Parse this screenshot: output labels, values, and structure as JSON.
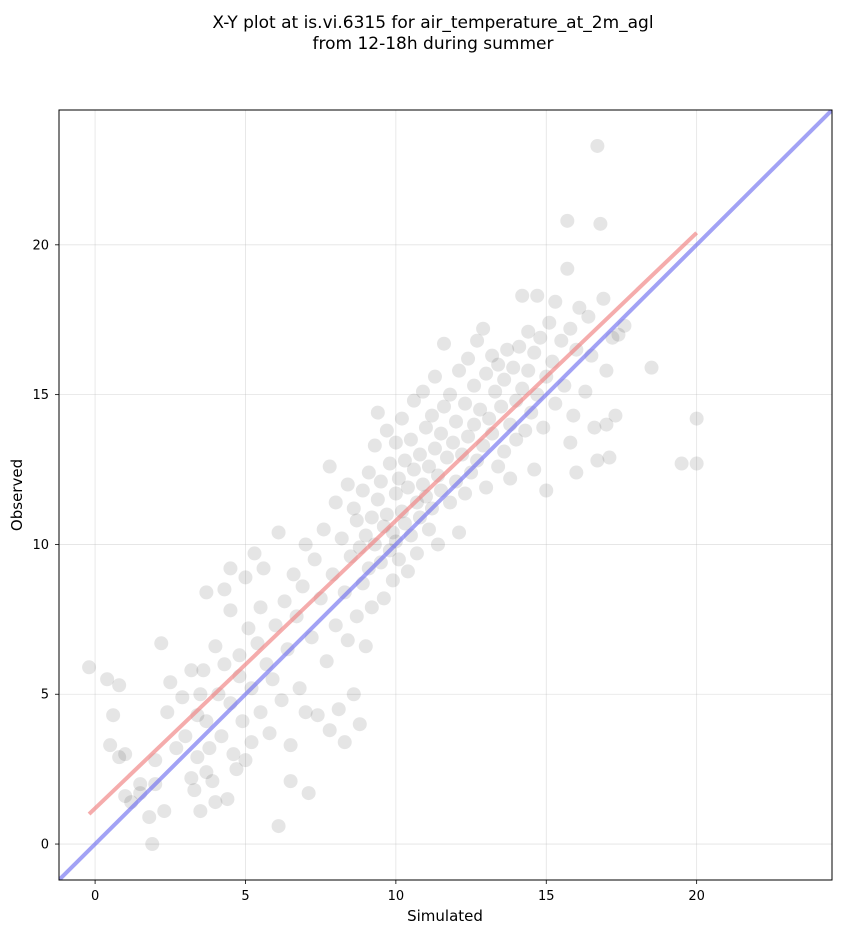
{
  "chart_data": {
    "type": "scatter",
    "title": [
      "X-Y plot at is.vi.6315 for air_temperature_at_2m_agl",
      "from 12-18h during summer"
    ],
    "xlabel": "Simulated",
    "ylabel": "Observed",
    "xlim": [
      -1.2,
      24.5
    ],
    "ylim": [
      -1.2,
      24.5
    ],
    "xticks": [
      0,
      5,
      10,
      15,
      20
    ],
    "yticks": [
      0,
      5,
      10,
      15,
      20
    ],
    "grid": true,
    "legend": "none",
    "point_color": "#000000",
    "point_alpha": 0.1,
    "fit_color": "#f08080",
    "identity_color": "#7070f0",
    "series": [
      {
        "kind": "points",
        "points": [
          [
            -0.2,
            5.9
          ],
          [
            0.4,
            5.5
          ],
          [
            0.8,
            5.3
          ],
          [
            0.5,
            3.3
          ],
          [
            0.6,
            4.3
          ],
          [
            0.8,
            2.9
          ],
          [
            1.0,
            3.0
          ],
          [
            1.0,
            1.6
          ],
          [
            1.2,
            1.4
          ],
          [
            1.5,
            2.0
          ],
          [
            1.5,
            1.7
          ],
          [
            1.8,
            0.9
          ],
          [
            1.9,
            0.0
          ],
          [
            2.0,
            2.8
          ],
          [
            2.0,
            2.0
          ],
          [
            2.2,
            6.7
          ],
          [
            2.3,
            1.1
          ],
          [
            2.4,
            4.4
          ],
          [
            2.5,
            5.4
          ],
          [
            2.7,
            3.2
          ],
          [
            2.9,
            4.9
          ],
          [
            3.0,
            3.6
          ],
          [
            3.2,
            5.8
          ],
          [
            3.2,
            2.2
          ],
          [
            3.3,
            1.8
          ],
          [
            3.4,
            4.3
          ],
          [
            3.4,
            2.9
          ],
          [
            3.5,
            5.0
          ],
          [
            3.5,
            1.1
          ],
          [
            3.6,
            5.8
          ],
          [
            3.7,
            4.1
          ],
          [
            3.7,
            2.4
          ],
          [
            3.7,
            8.4
          ],
          [
            3.8,
            3.2
          ],
          [
            3.9,
            2.1
          ],
          [
            4.0,
            6.6
          ],
          [
            4.0,
            1.4
          ],
          [
            4.1,
            5.0
          ],
          [
            4.2,
            3.6
          ],
          [
            4.3,
            8.5
          ],
          [
            4.3,
            6.0
          ],
          [
            4.4,
            1.5
          ],
          [
            4.5,
            9.2
          ],
          [
            4.5,
            7.8
          ],
          [
            4.5,
            4.7
          ],
          [
            4.6,
            3.0
          ],
          [
            4.7,
            2.5
          ],
          [
            4.8,
            6.3
          ],
          [
            4.8,
            5.6
          ],
          [
            4.9,
            4.1
          ],
          [
            5.0,
            8.9
          ],
          [
            5.0,
            2.8
          ],
          [
            5.1,
            7.2
          ],
          [
            5.2,
            5.2
          ],
          [
            5.2,
            3.4
          ],
          [
            5.3,
            9.7
          ],
          [
            5.4,
            6.7
          ],
          [
            5.5,
            4.4
          ],
          [
            5.5,
            7.9
          ],
          [
            5.6,
            9.2
          ],
          [
            5.7,
            6.0
          ],
          [
            5.8,
            3.7
          ],
          [
            5.9,
            5.5
          ],
          [
            6.0,
            7.3
          ],
          [
            6.1,
            10.4
          ],
          [
            6.1,
            0.6
          ],
          [
            6.2,
            4.8
          ],
          [
            6.3,
            8.1
          ],
          [
            6.4,
            6.5
          ],
          [
            6.5,
            3.3
          ],
          [
            6.5,
            2.1
          ],
          [
            6.6,
            9.0
          ],
          [
            6.7,
            7.6
          ],
          [
            6.8,
            5.2
          ],
          [
            6.9,
            8.6
          ],
          [
            7.0,
            4.4
          ],
          [
            7.0,
            10.0
          ],
          [
            7.1,
            1.7
          ],
          [
            7.2,
            6.9
          ],
          [
            7.3,
            9.5
          ],
          [
            7.4,
            4.3
          ],
          [
            7.5,
            8.2
          ],
          [
            7.6,
            10.5
          ],
          [
            7.7,
            6.1
          ],
          [
            7.8,
            12.6
          ],
          [
            7.8,
            3.8
          ],
          [
            7.9,
            9.0
          ],
          [
            8.0,
            11.4
          ],
          [
            8.0,
            7.3
          ],
          [
            8.1,
            4.5
          ],
          [
            8.2,
            10.2
          ],
          [
            8.3,
            8.4
          ],
          [
            8.3,
            3.4
          ],
          [
            8.4,
            12.0
          ],
          [
            8.4,
            6.8
          ],
          [
            8.5,
            9.6
          ],
          [
            8.6,
            11.2
          ],
          [
            8.6,
            5.0
          ],
          [
            8.7,
            10.8
          ],
          [
            8.7,
            7.6
          ],
          [
            8.8,
            9.9
          ],
          [
            8.8,
            4.0
          ],
          [
            8.9,
            11.8
          ],
          [
            8.9,
            8.7
          ],
          [
            9.0,
            10.3
          ],
          [
            9.0,
            6.6
          ],
          [
            9.1,
            12.4
          ],
          [
            9.1,
            9.2
          ],
          [
            9.2,
            10.9
          ],
          [
            9.2,
            7.9
          ],
          [
            9.3,
            13.3
          ],
          [
            9.3,
            10.0
          ],
          [
            9.4,
            11.5
          ],
          [
            9.4,
            14.4
          ],
          [
            9.5,
            9.4
          ],
          [
            9.5,
            12.1
          ],
          [
            9.6,
            10.6
          ],
          [
            9.6,
            8.2
          ],
          [
            9.7,
            11.0
          ],
          [
            9.7,
            13.8
          ],
          [
            9.8,
            9.8
          ],
          [
            9.8,
            12.7
          ],
          [
            9.9,
            10.4
          ],
          [
            9.9,
            8.8
          ],
          [
            10.0,
            11.7
          ],
          [
            10.0,
            13.4
          ],
          [
            10.0,
            10.1
          ],
          [
            10.1,
            12.2
          ],
          [
            10.1,
            9.5
          ],
          [
            10.2,
            11.1
          ],
          [
            10.2,
            14.2
          ],
          [
            10.3,
            10.7
          ],
          [
            10.3,
            12.8
          ],
          [
            10.4,
            9.1
          ],
          [
            10.4,
            11.9
          ],
          [
            10.5,
            13.5
          ],
          [
            10.5,
            10.3
          ],
          [
            10.6,
            12.5
          ],
          [
            10.6,
            14.8
          ],
          [
            10.7,
            11.4
          ],
          [
            10.7,
            9.7
          ],
          [
            10.8,
            13.0
          ],
          [
            10.8,
            10.9
          ],
          [
            10.9,
            12.0
          ],
          [
            10.9,
            15.1
          ],
          [
            11.0,
            11.6
          ],
          [
            11.0,
            13.9
          ],
          [
            11.1,
            10.5
          ],
          [
            11.1,
            12.6
          ],
          [
            11.2,
            14.3
          ],
          [
            11.2,
            11.2
          ],
          [
            11.3,
            13.2
          ],
          [
            11.3,
            15.6
          ],
          [
            11.4,
            12.3
          ],
          [
            11.4,
            10.0
          ],
          [
            11.5,
            13.7
          ],
          [
            11.5,
            11.8
          ],
          [
            11.6,
            14.6
          ],
          [
            11.6,
            16.7
          ],
          [
            11.7,
            12.9
          ],
          [
            11.8,
            11.4
          ],
          [
            11.8,
            15.0
          ],
          [
            11.9,
            13.4
          ],
          [
            12.0,
            12.1
          ],
          [
            12.0,
            14.1
          ],
          [
            12.1,
            10.4
          ],
          [
            12.1,
            15.8
          ],
          [
            12.2,
            13.0
          ],
          [
            12.3,
            14.7
          ],
          [
            12.3,
            11.7
          ],
          [
            12.4,
            16.2
          ],
          [
            12.4,
            13.6
          ],
          [
            12.5,
            12.4
          ],
          [
            12.6,
            15.3
          ],
          [
            12.6,
            14.0
          ],
          [
            12.7,
            16.8
          ],
          [
            12.7,
            12.8
          ],
          [
            12.8,
            14.5
          ],
          [
            12.9,
            17.2
          ],
          [
            12.9,
            13.3
          ],
          [
            13.0,
            15.7
          ],
          [
            13.0,
            11.9
          ],
          [
            13.1,
            14.2
          ],
          [
            13.2,
            16.3
          ],
          [
            13.2,
            13.7
          ],
          [
            13.3,
            15.1
          ],
          [
            13.4,
            12.6
          ],
          [
            13.4,
            16.0
          ],
          [
            13.5,
            14.6
          ],
          [
            13.6,
            13.1
          ],
          [
            13.6,
            15.5
          ],
          [
            13.7,
            16.5
          ],
          [
            13.8,
            14.0
          ],
          [
            13.8,
            12.2
          ],
          [
            13.9,
            15.9
          ],
          [
            14.0,
            14.8
          ],
          [
            14.0,
            13.5
          ],
          [
            14.1,
            16.6
          ],
          [
            14.2,
            15.2
          ],
          [
            14.2,
            18.3
          ],
          [
            14.3,
            13.8
          ],
          [
            14.4,
            15.8
          ],
          [
            14.4,
            17.1
          ],
          [
            14.5,
            14.4
          ],
          [
            14.6,
            16.4
          ],
          [
            14.6,
            12.5
          ],
          [
            14.7,
            18.3
          ],
          [
            14.7,
            15.0
          ],
          [
            14.8,
            16.9
          ],
          [
            14.9,
            13.9
          ],
          [
            15.0,
            15.6
          ],
          [
            15.0,
            11.8
          ],
          [
            15.1,
            17.4
          ],
          [
            15.2,
            16.1
          ],
          [
            15.3,
            18.1
          ],
          [
            15.3,
            14.7
          ],
          [
            15.5,
            16.8
          ],
          [
            15.6,
            15.3
          ],
          [
            15.7,
            20.8
          ],
          [
            15.7,
            19.2
          ],
          [
            15.8,
            17.2
          ],
          [
            15.8,
            13.4
          ],
          [
            15.9,
            14.3
          ],
          [
            16.0,
            12.4
          ],
          [
            16.0,
            16.5
          ],
          [
            16.1,
            17.9
          ],
          [
            16.3,
            15.1
          ],
          [
            16.4,
            17.6
          ],
          [
            16.5,
            16.3
          ],
          [
            16.6,
            13.9
          ],
          [
            16.7,
            12.8
          ],
          [
            16.7,
            23.3
          ],
          [
            16.8,
            20.7
          ],
          [
            16.9,
            18.2
          ],
          [
            17.0,
            15.8
          ],
          [
            17.0,
            14.0
          ],
          [
            17.1,
            12.9
          ],
          [
            17.2,
            16.9
          ],
          [
            17.3,
            14.3
          ],
          [
            17.4,
            17.0
          ],
          [
            17.6,
            17.3
          ],
          [
            18.5,
            15.9
          ],
          [
            19.5,
            12.7
          ],
          [
            20.0,
            12.7
          ],
          [
            20.0,
            14.2
          ]
        ]
      },
      {
        "kind": "line",
        "role": "fit",
        "points": [
          [
            -0.2,
            1.0
          ],
          [
            20.0,
            20.4
          ]
        ]
      },
      {
        "kind": "line",
        "role": "identity",
        "points": [
          [
            -1.2,
            -1.2
          ],
          [
            24.5,
            24.5
          ]
        ]
      }
    ]
  }
}
